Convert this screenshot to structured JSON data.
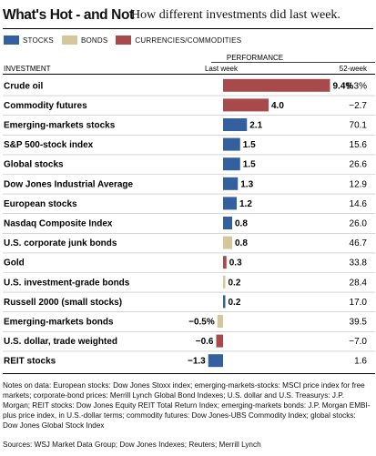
{
  "header": {
    "title": "What's Hot - and Not",
    "subtitle": "How different investments did last week."
  },
  "legend": [
    {
      "label": "STOCKS",
      "color": "#33609e"
    },
    {
      "label": "BONDS",
      "color": "#d6c69b"
    },
    {
      "label": "CURRENCIES/COMMODITIES",
      "color": "#a84a4c"
    }
  ],
  "chart_data": {
    "type": "bar",
    "group_label": "PERFORMANCE",
    "category_header": "INVESTMENT",
    "value_header": "Last week",
    "change_header": "52-week",
    "value_unit": "%",
    "xlim": [
      -1.5,
      9.6
    ],
    "rows": [
      {
        "name": "Crude oil",
        "value": 9.4,
        "label": "9.4%",
        "change": "9.3%",
        "group": "CURRENCIES/COMMODITIES"
      },
      {
        "name": "Commodity futures",
        "value": 4.0,
        "label": "4.0",
        "change": "−2.7",
        "group": "CURRENCIES/COMMODITIES"
      },
      {
        "name": "Emerging-markets stocks",
        "value": 2.1,
        "label": "2.1",
        "change": "70.1",
        "group": "STOCKS"
      },
      {
        "name": "S&P 500-stock index",
        "value": 1.5,
        "label": "1.5",
        "change": "15.6",
        "group": "STOCKS"
      },
      {
        "name": "Global stocks",
        "value": 1.5,
        "label": "1.5",
        "change": "26.6",
        "group": "STOCKS"
      },
      {
        "name": "Dow Jones Industrial Average",
        "value": 1.3,
        "label": "1.3",
        "change": "12.9",
        "group": "STOCKS"
      },
      {
        "name": "European stocks",
        "value": 1.2,
        "label": "1.2",
        "change": "14.6",
        "group": "STOCKS"
      },
      {
        "name": "Nasdaq Composite Index",
        "value": 0.8,
        "label": "0.8",
        "change": "26.0",
        "group": "STOCKS"
      },
      {
        "name": "U.S. corporate junk bonds",
        "value": 0.8,
        "label": "0.8",
        "change": "46.7",
        "group": "BONDS"
      },
      {
        "name": "Gold",
        "value": 0.3,
        "label": "0.3",
        "change": "33.8",
        "group": "CURRENCIES/COMMODITIES"
      },
      {
        "name": "U.S. investment-grade bonds",
        "value": 0.2,
        "label": "0.2",
        "change": "28.4",
        "group": "BONDS"
      },
      {
        "name": "Russell 2000 (small stocks)",
        "value": 0.2,
        "label": "0.2",
        "change": "17.0",
        "group": "STOCKS"
      },
      {
        "name": "Emerging-markets bonds",
        "value": -0.5,
        "label": "−0.5%",
        "change": "39.5",
        "group": "BONDS"
      },
      {
        "name": "U.S. dollar, trade weighted",
        "value": -0.6,
        "label": "−0.6",
        "change": "−7.0",
        "group": "CURRENCIES/COMMODITIES"
      },
      {
        "name": "REIT stocks",
        "value": -1.3,
        "label": "−1.3",
        "change": "1.6",
        "group": "STOCKS"
      }
    ]
  },
  "notes": "Notes on data: European stocks: Dow Jones Stoxx index; emerging-markets-stocks: MSCI price index for free markets; corporate-bond prices: Merrill Lynch Global Bond Indexes; U.S. dollar and U.S. Treasurys: J.P. Morgan; REIT stocks: Dow Jones Equity REIT Total Return Index; emerging-markets bonds: J.P. Morgan EMBI-plus price index, in U.S.-dollar terms; commodity futures: Dow Jones-UBS Commodity Index; global stocks: Dow Jones Global Stock Index",
  "sources": "Sources: WSJ Market Data Group; Dow Jones Indexes; Reuters; Merrill Lynch"
}
